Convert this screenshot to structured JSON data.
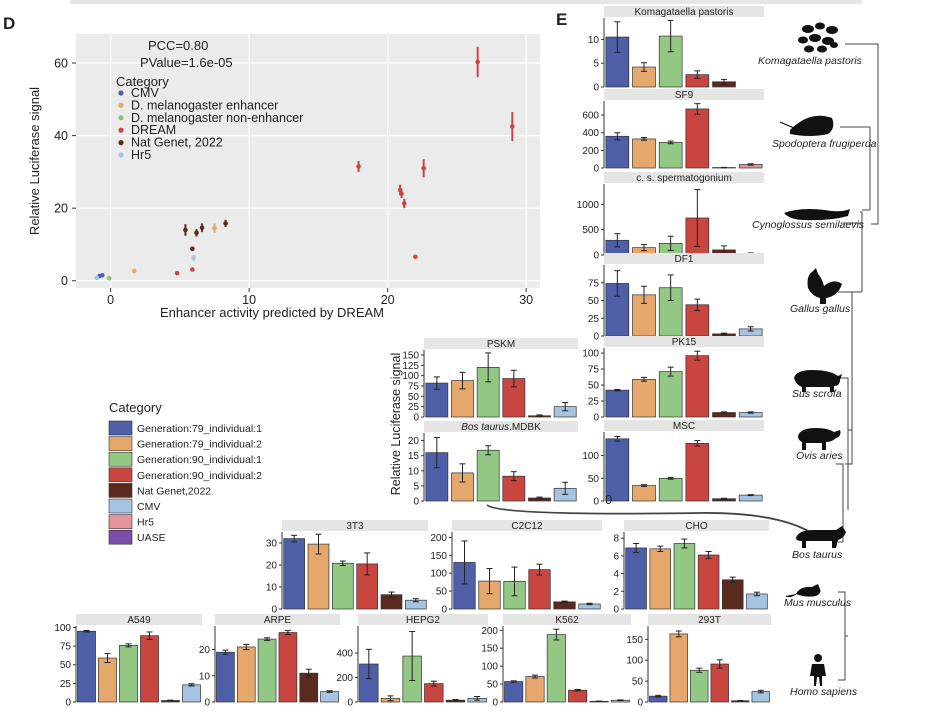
{
  "top_bar_color": "#e6e6e6",
  "panel_d": {
    "letter": "D",
    "chart_data": {
      "type": "scatter",
      "xlabel": "Enhancer activity predicted by DREAM",
      "ylabel": "Relative Luciferase signal",
      "xlim": [
        -2.5,
        31
      ],
      "ylim": [
        -2,
        68
      ],
      "x_ticks": [
        0,
        10,
        20,
        30
      ],
      "y_ticks": [
        0,
        20,
        40,
        60
      ],
      "x_tick_labels": [
        "0",
        "10",
        "20",
        "30"
      ],
      "y_tick_labels": [
        "0",
        "20",
        "40",
        "60"
      ],
      "annotations": [
        "PCC=0.80",
        "PValue=1.6e-05"
      ],
      "legend_title": "Category",
      "legend": [
        {
          "name": "CMV",
          "color": "#4e5fa8"
        },
        {
          "name": "D. melanogaster enhancer",
          "color": "#e8a862"
        },
        {
          "name": "D. melanogaster non-enhancer",
          "color": "#8bc47e"
        },
        {
          "name": "DREAM",
          "color": "#c94540"
        },
        {
          "name": "Nat Genet, 2022",
          "color": "#5a2a1e"
        },
        {
          "name": "Hr5",
          "color": "#a6c4e0"
        }
      ],
      "points": [
        {
          "cat": 0,
          "x": -0.8,
          "y": 1.3,
          "err": 0.3
        },
        {
          "cat": 0,
          "x": -0.6,
          "y": 1.5,
          "err": 0.3
        },
        {
          "cat": 5,
          "x": -1.0,
          "y": 0.8,
          "err": 0.2
        },
        {
          "cat": 2,
          "x": -0.1,
          "y": 0.7,
          "err": 0.3
        },
        {
          "cat": 1,
          "x": 1.7,
          "y": 2.7,
          "err": 0.3
        },
        {
          "cat": 3,
          "x": 4.8,
          "y": 2.1,
          "err": 0.3
        },
        {
          "cat": 3,
          "x": 5.9,
          "y": 3.1,
          "err": 0.3
        },
        {
          "cat": 5,
          "x": 6.0,
          "y": 6.3,
          "err": 0.8
        },
        {
          "cat": 4,
          "x": 5.9,
          "y": 8.8,
          "err": 0.6
        },
        {
          "cat": 4,
          "x": 5.4,
          "y": 14.0,
          "err": 1.6
        },
        {
          "cat": 4,
          "x": 6.2,
          "y": 13.2,
          "err": 1.0
        },
        {
          "cat": 4,
          "x": 6.6,
          "y": 14.6,
          "err": 1.2
        },
        {
          "cat": 1,
          "x": 7.5,
          "y": 14.5,
          "err": 1.3
        },
        {
          "cat": 4,
          "x": 8.3,
          "y": 15.8,
          "err": 1.0
        },
        {
          "cat": 3,
          "x": 17.9,
          "y": 31.5,
          "err": 1.5
        },
        {
          "cat": 3,
          "x": 20.9,
          "y": 25.0,
          "err": 1.5
        },
        {
          "cat": 3,
          "x": 21.0,
          "y": 24.0,
          "err": 1.2
        },
        {
          "cat": 3,
          "x": 21.2,
          "y": 21.3,
          "err": 1.3
        },
        {
          "cat": 3,
          "x": 22.0,
          "y": 6.6,
          "err": 0.3
        },
        {
          "cat": 3,
          "x": 22.6,
          "y": 31.0,
          "err": 2.5
        },
        {
          "cat": 3,
          "x": 26.5,
          "y": 60.3,
          "err": 4.2
        },
        {
          "cat": 3,
          "x": 29.0,
          "y": 42.5,
          "err": 4.0
        }
      ]
    }
  },
  "panel_e": {
    "letter": "E",
    "bar_ylabel": "Relative Luciferase signal",
    "stray_label": "0",
    "category_legend": {
      "title": "Category",
      "items": [
        {
          "name": "Generation:79_individual:1",
          "color": "#4e5fa8"
        },
        {
          "name": "Generation:79_individual:2",
          "color": "#e5a76c"
        },
        {
          "name": "Generation:90_individual:1",
          "color": "#92c883"
        },
        {
          "name": "Generation:90_individual:2",
          "color": "#c94540"
        },
        {
          "name": "Nat Genet,2022",
          "color": "#5a2a1e"
        },
        {
          "name": "CMV",
          "color": "#a6c4e0"
        },
        {
          "name": "Hr5",
          "color": "#e4949a"
        },
        {
          "name": "UASE",
          "color": "#7b4ea8"
        }
      ]
    },
    "species": [
      "Komagataella pastoris",
      "Spodoptera frugiperda",
      "Cynoglossus semilaevis",
      "Gallus gallus",
      "Sus scrofa",
      "Ovis aries",
      "Bos taurus",
      "Mus musculus",
      "Homo sapiens"
    ]
  },
  "chart_data": [
    {
      "type": "bar",
      "title": "Komagataella pastoris",
      "categories": [
        "Generation:79_individual:1",
        "Generation:79_individual:2",
        "Generation:90_individual:1",
        "Generation:90_individual:2",
        "Nat Genet,2022",
        "UASE"
      ],
      "colors": [
        0,
        1,
        2,
        3,
        4,
        7
      ],
      "values": [
        10.5,
        4.2,
        10.7,
        2.6,
        1.1,
        0
      ],
      "errors": [
        3.2,
        0.9,
        3.3,
        0.8,
        0.5,
        0
      ],
      "ticks": [
        0,
        5,
        10
      ],
      "tick_labels": [
        "0",
        "5",
        "10"
      ],
      "ymax": 14.5
    },
    {
      "type": "bar",
      "title": "SF9",
      "categories": [
        "Generation:79_individual:1",
        "Generation:79_individual:2",
        "Generation:90_individual:1",
        "Generation:90_individual:2",
        "Nat Genet,2022",
        "Hr5"
      ],
      "colors": [
        0,
        1,
        2,
        3,
        4,
        6
      ],
      "values": [
        360,
        330,
        290,
        670,
        5,
        40
      ],
      "errors": [
        40,
        15,
        15,
        60,
        2,
        8
      ],
      "ticks": [
        0,
        200,
        400,
        600
      ],
      "tick_labels": [
        "0",
        "200",
        "400",
        "600"
      ],
      "ymax": 760
    },
    {
      "type": "bar",
      "title": "c. s. spermatogonium",
      "categories": [
        "Generation:79_individual:1",
        "Generation:79_individual:2",
        "Generation:90_individual:1",
        "Generation:90_individual:2",
        "Nat Genet,2022",
        "CMV"
      ],
      "colors": [
        0,
        1,
        2,
        3,
        4,
        5
      ],
      "values": [
        290,
        145,
        230,
        730,
        100,
        30
      ],
      "errors": [
        130,
        60,
        140,
        560,
        80,
        10
      ],
      "ticks": [
        0,
        500,
        1000
      ],
      "tick_labels": [
        "0",
        "500",
        "1000"
      ],
      "ymax": 1400
    },
    {
      "type": "bar",
      "title": "DF1",
      "categories": [
        "Generation:79_individual:1",
        "Generation:79_individual:2",
        "Generation:90_individual:1",
        "Generation:90_individual:2",
        "Nat Genet,2022",
        "CMV"
      ],
      "colors": [
        0,
        1,
        2,
        3,
        4,
        5
      ],
      "values": [
        74,
        58,
        68,
        44,
        3,
        10
      ],
      "errors": [
        18,
        12,
        18,
        8,
        1,
        3
      ],
      "ticks": [
        0,
        25,
        50,
        75
      ],
      "tick_labels": [
        "0",
        "25",
        "50",
        "75"
      ],
      "ymax": 100
    },
    {
      "type": "bar",
      "title": "PK15",
      "categories": [
        "Generation:79_individual:1",
        "Generation:79_individual:2",
        "Generation:90_individual:1",
        "Generation:90_individual:2",
        "Nat Genet,2022",
        "CMV"
      ],
      "colors": [
        0,
        1,
        2,
        3,
        4,
        5
      ],
      "values": [
        42,
        59,
        71,
        96,
        7,
        7
      ],
      "errors": [
        1,
        3,
        7,
        7,
        1,
        1
      ],
      "ticks": [
        0,
        25,
        50,
        75,
        100
      ],
      "tick_labels": [
        "0",
        "25",
        "50",
        "75",
        "100"
      ],
      "ymax": 108
    },
    {
      "type": "bar",
      "title": "MSC",
      "categories": [
        "Generation:79_individual:1",
        "Generation:79_individual:2",
        "Generation:90_individual:1",
        "Generation:90_individual:2",
        "Nat Genet,2022",
        "CMV"
      ],
      "colors": [
        0,
        1,
        2,
        3,
        4,
        5
      ],
      "values": [
        137,
        34,
        50,
        127,
        5,
        13
      ],
      "errors": [
        5,
        2,
        2,
        6,
        1,
        1
      ],
      "ticks": [
        0,
        50,
        100
      ],
      "tick_labels": [
        "0",
        "50",
        "100"
      ],
      "ymax": 152
    },
    {
      "type": "bar",
      "title": "PSKM",
      "categories": [
        "Generation:79_individual:1",
        "Generation:79_individual:2",
        "Generation:90_individual:1",
        "Generation:90_individual:2",
        "Nat Genet,2022",
        "CMV"
      ],
      "colors": [
        0,
        1,
        2,
        3,
        4,
        5
      ],
      "values": [
        82,
        88,
        120,
        93,
        3,
        25
      ],
      "errors": [
        15,
        20,
        35,
        20,
        2,
        10
      ],
      "ticks": [
        0,
        25,
        50,
        75,
        100,
        125,
        150
      ],
      "tick_labels": [
        "0",
        "25",
        "50",
        "75",
        "100",
        "125",
        "150"
      ],
      "ymax": 162
    },
    {
      "type": "bar",
      "title": "Bos taurus.MDBK",
      "title_italic": "Bos taurus",
      "title_rest": ".MDBK",
      "categories": [
        "Generation:79_individual:1",
        "Generation:79_individual:2",
        "Generation:90_individual:1",
        "Generation:90_individual:2",
        "Nat Genet,2022",
        "CMV"
      ],
      "colors": [
        0,
        1,
        2,
        3,
        4,
        5
      ],
      "values": [
        16,
        9.3,
        16.8,
        8.2,
        1,
        4.2
      ],
      "errors": [
        5,
        3,
        1.5,
        1.5,
        0.3,
        2
      ],
      "ticks": [
        0,
        5,
        10,
        15,
        20
      ],
      "tick_labels": [
        "0",
        "5",
        "10",
        "15",
        "20"
      ],
      "ymax": 22.5
    },
    {
      "type": "bar",
      "title": "3T3",
      "categories": [
        "Generation:79_individual:1",
        "Generation:79_individual:2",
        "Generation:90_individual:1",
        "Generation:90_individual:2",
        "Nat Genet,2022",
        "CMV"
      ],
      "colors": [
        0,
        1,
        2,
        3,
        4,
        5
      ],
      "values": [
        32,
        29.5,
        20.8,
        20.5,
        6.5,
        4
      ],
      "errors": [
        1.5,
        4.5,
        1,
        5,
        1.2,
        0.7
      ],
      "ticks": [
        0,
        10,
        20,
        30
      ],
      "tick_labels": [
        "0",
        "10",
        "20",
        "30"
      ],
      "ymax": 35
    },
    {
      "type": "bar",
      "title": "C2C12",
      "categories": [
        "Generation:79_individual:1",
        "Generation:79_individual:2",
        "Generation:90_individual:1",
        "Generation:90_individual:2",
        "Nat Genet,2022",
        "CMV"
      ],
      "colors": [
        0,
        1,
        2,
        3,
        4,
        5
      ],
      "values": [
        130,
        78,
        77,
        110,
        20,
        14
      ],
      "errors": [
        60,
        35,
        40,
        15,
        2,
        2
      ],
      "ticks": [
        0,
        50,
        100,
        150,
        200
      ],
      "tick_labels": [
        "0",
        "50",
        "100",
        "150",
        "200"
      ],
      "ymax": 215
    },
    {
      "type": "bar",
      "title": "CHO",
      "categories": [
        "Generation:79_individual:1",
        "Generation:79_individual:2",
        "Generation:90_individual:1",
        "Generation:90_individual:2",
        "Nat Genet,2022",
        "CMV"
      ],
      "colors": [
        0,
        1,
        2,
        3,
        4,
        5
      ],
      "values": [
        6.9,
        6.8,
        7.4,
        6.1,
        3.3,
        1.7
      ],
      "errors": [
        0.5,
        0.3,
        0.5,
        0.4,
        0.3,
        0.2
      ],
      "ticks": [
        0,
        2,
        4,
        6,
        8
      ],
      "tick_labels": [
        "0",
        "2",
        "4",
        "6",
        "8"
      ],
      "ymax": 8.7
    },
    {
      "type": "bar",
      "title": "A549",
      "categories": [
        "Generation:79_individual:1",
        "Generation:79_individual:2",
        "Generation:90_individual:1",
        "Generation:90_individual:2",
        "Nat Genet,2022",
        "CMV"
      ],
      "colors": [
        0,
        1,
        2,
        3,
        4,
        5
      ],
      "values": [
        95,
        59,
        76,
        89,
        2,
        23
      ],
      "errors": [
        1,
        6,
        2,
        5,
        0.5,
        1.5
      ],
      "ticks": [
        0,
        25,
        50,
        75,
        100
      ],
      "tick_labels": [
        "0",
        "25",
        "50",
        "75",
        "100"
      ],
      "ymax": 102
    },
    {
      "type": "bar",
      "title": "ARPE",
      "categories": [
        "Generation:79_individual:1",
        "Generation:79_individual:2",
        "Generation:90_individual:1",
        "Generation:90_individual:2",
        "Nat Genet,2022",
        "CMV"
      ],
      "colors": [
        0,
        1,
        2,
        3,
        4,
        5
      ],
      "values": [
        19,
        21,
        24,
        26.5,
        11,
        4
      ],
      "errors": [
        0.8,
        1,
        0.5,
        0.8,
        1.5,
        0.3
      ],
      "ticks": [
        0,
        10,
        20
      ],
      "tick_labels": [
        "0",
        "10",
        "20"
      ],
      "ymax": 29
    },
    {
      "type": "bar",
      "title": "HEPG2",
      "categories": [
        "Generation:79_individual:1",
        "Generation:79_individual:2",
        "Generation:90_individual:1",
        "Generation:90_individual:2",
        "Nat Genet,2022",
        "CMV"
      ],
      "colors": [
        0,
        1,
        2,
        3,
        4,
        5
      ],
      "values": [
        310,
        30,
        375,
        150,
        15,
        30
      ],
      "errors": [
        120,
        20,
        200,
        20,
        5,
        15
      ],
      "ticks": [
        0,
        200,
        400
      ],
      "tick_labels": [
        "0",
        "200",
        "400"
      ],
      "ymax": 620
    },
    {
      "type": "bar",
      "title": "K562",
      "categories": [
        "Generation:79_individual:1",
        "Generation:79_individual:2",
        "Generation:90_individual:1",
        "Generation:90_individual:2",
        "Nat Genet,2022",
        "CMV"
      ],
      "colors": [
        0,
        1,
        2,
        3,
        4,
        5
      ],
      "values": [
        57,
        71,
        188,
        33,
        2,
        5
      ],
      "errors": [
        2,
        4,
        15,
        2,
        0.5,
        1
      ],
      "ticks": [
        0,
        50,
        100,
        150,
        200
      ],
      "tick_labels": [
        "0",
        "50",
        "100",
        "150",
        "200"
      ],
      "ymax": 212
    },
    {
      "type": "bar",
      "title": "293T",
      "categories": [
        "Generation:79_individual:1",
        "Generation:79_individual:2",
        "Generation:90_individual:1",
        "Generation:90_individual:2",
        "Nat Genet,2022",
        "CMV"
      ],
      "colors": [
        0,
        1,
        2,
        3,
        4,
        5
      ],
      "values": [
        14,
        163,
        76,
        91,
        3,
        25
      ],
      "errors": [
        2,
        7,
        5,
        10,
        0.5,
        3
      ],
      "ticks": [
        0,
        50,
        100,
        150
      ],
      "tick_labels": [
        "0",
        "50",
        "100",
        "150"
      ],
      "ymax": 182
    }
  ]
}
